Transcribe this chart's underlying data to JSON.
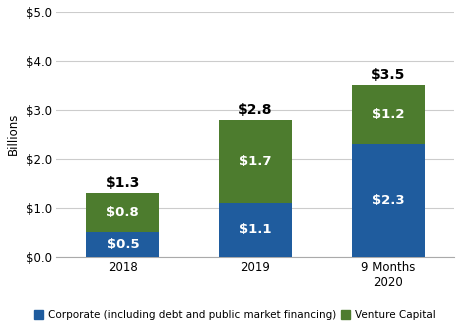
{
  "categories": [
    "2018",
    "2019",
    "9 Months\n2020"
  ],
  "corporate": [
    0.5,
    1.1,
    2.3
  ],
  "venture": [
    0.8,
    1.7,
    1.2
  ],
  "totals": [
    "$1.3",
    "$2.8",
    "$3.5"
  ],
  "corp_labels": [
    "$0.5",
    "$1.1",
    "$2.3"
  ],
  "vc_labels": [
    "$0.8",
    "$1.7",
    "$1.2"
  ],
  "corp_color": "#1F5C9E",
  "vc_color": "#4D7C2E",
  "ylim": [
    0,
    5.0
  ],
  "yticks": [
    0.0,
    1.0,
    2.0,
    3.0,
    4.0,
    5.0
  ],
  "ytick_labels": [
    "$0.0",
    "$1.0",
    "$2.0",
    "$3.0",
    "$4.0",
    "$5.0"
  ],
  "ylabel": "Billions",
  "legend_corp": "Corporate (including debt and public market financing)",
  "legend_vc": "Venture Capital",
  "bar_width": 0.55,
  "label_fontsize": 9.5,
  "total_fontsize": 10,
  "axis_fontsize": 8.5,
  "ylabel_fontsize": 8.5,
  "legend_fontsize": 7.5,
  "background_color": "#ffffff",
  "grid_color": "#cccccc"
}
